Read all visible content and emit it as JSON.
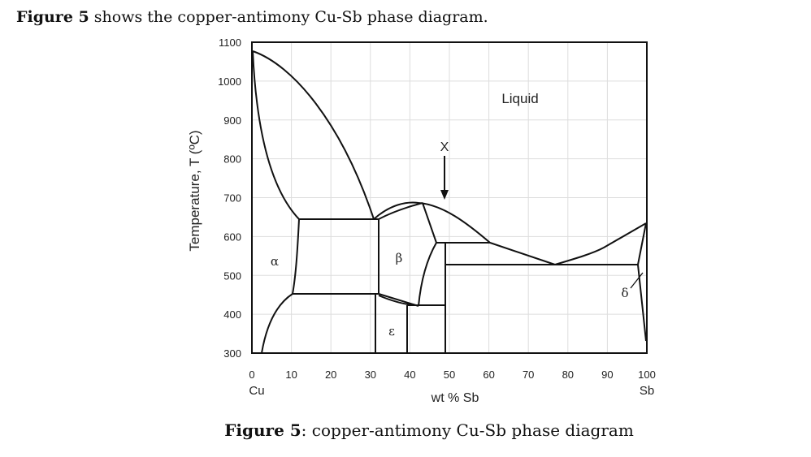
{
  "heading": {
    "bold": "Figure 5",
    "rest": " shows the copper-antimony Cu-Sb phase diagram."
  },
  "caption": {
    "bold": "Figure 5",
    "rest": ": copper-antimony Cu-Sb phase diagram"
  },
  "diagram": {
    "ylabel": "Temperature, T  (ºC)",
    "xlabel": "wt % Sb",
    "x_ticks": [
      "0",
      "10",
      "20",
      "30",
      "40",
      "50",
      "60",
      "70",
      "80",
      "90",
      "100"
    ],
    "y_ticks": [
      "1100",
      "1000",
      "900",
      "800",
      "700",
      "600",
      "500",
      "400",
      "300"
    ],
    "x_left_element": "Cu",
    "x_right_element": "Sb",
    "xlim": [
      0,
      100
    ],
    "ylim": [
      300,
      1100
    ],
    "grid": true,
    "regions": {
      "liquid": "Liquid",
      "alpha": "α",
      "beta": "β",
      "epsilon": "ε",
      "delta": "δ"
    },
    "marker": {
      "label": "X",
      "icon": "down-arrow-icon"
    },
    "colors": {
      "line": "#111111",
      "grid": "#dddddd"
    }
  }
}
